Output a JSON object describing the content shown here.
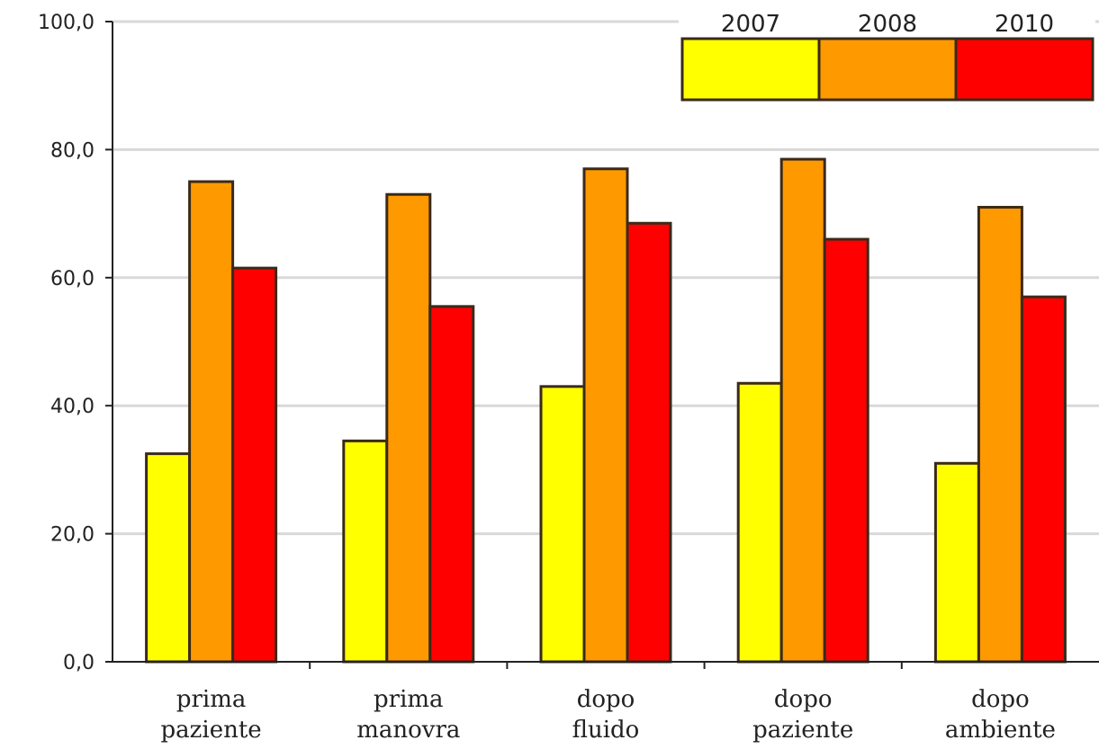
{
  "chart_data": {
    "type": "bar",
    "categories": [
      [
        "prima",
        "paziente"
      ],
      [
        "prima",
        "manovra"
      ],
      [
        "dopo",
        "fluido"
      ],
      [
        "dopo",
        "paziente"
      ],
      [
        "dopo",
        "ambiente"
      ]
    ],
    "series": [
      {
        "name": "2007",
        "color": "#FFFF00",
        "values": [
          32.5,
          34.5,
          43.0,
          43.5,
          31.0
        ]
      },
      {
        "name": "2008",
        "color": "#FF9900",
        "values": [
          75.0,
          73.0,
          77.0,
          78.5,
          71.0
        ]
      },
      {
        "name": "2010",
        "color": "#FF0000",
        "values": [
          61.5,
          55.5,
          68.5,
          66.0,
          57.0
        ]
      }
    ],
    "ylim": [
      0,
      100
    ],
    "yticks": [
      "0,0",
      "20,0",
      "40,0",
      "60,0",
      "80,0",
      "100,0"
    ],
    "grid": true,
    "legend_position": "top-right",
    "bar_border_color": "#3a2a1a"
  }
}
